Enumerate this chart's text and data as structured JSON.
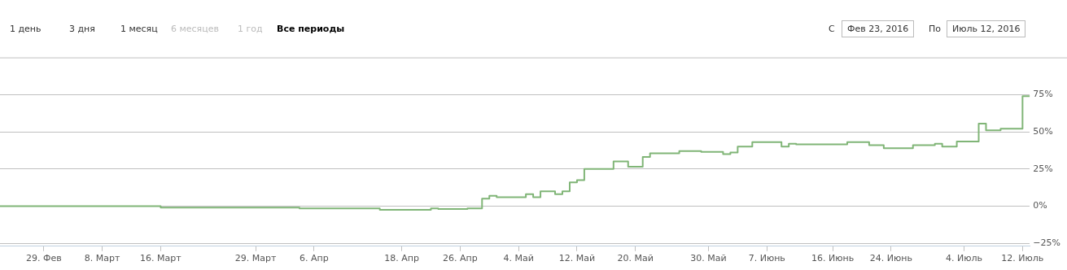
{
  "chart_data": {
    "type": "step",
    "color": "#80b577",
    "grid": "y",
    "line_style": "solid",
    "marker": "none",
    "annotations": [
      "1 день",
      "3 дня",
      "1 месяц",
      "6 месяцев",
      "1 год",
      "Все периоды",
      "С",
      "Фев 23, 2016",
      "По",
      "Июль 12, 2016"
    ],
    "xlim": [
      "2016-02-23",
      "2016-07-13"
    ],
    "xticks": [
      {
        "value": "2016-02-29",
        "label": "29. Фев"
      },
      {
        "value": "2016-03-08",
        "label": "8. Март"
      },
      {
        "value": "2016-03-16",
        "label": "16. Март"
      },
      {
        "value": "2016-03-29",
        "label": "29. Март"
      },
      {
        "value": "2016-04-06",
        "label": "6. Апр"
      },
      {
        "value": "2016-04-18",
        "label": "18. Апр"
      },
      {
        "value": "2016-04-26",
        "label": "26. Апр"
      },
      {
        "value": "2016-05-04",
        "label": "4. Май"
      },
      {
        "value": "2016-05-12",
        "label": "12. Май"
      },
      {
        "value": "2016-05-20",
        "label": "20. Май"
      },
      {
        "value": "2016-05-30",
        "label": "30. Май"
      },
      {
        "value": "2016-06-07",
        "label": "7. Июнь"
      },
      {
        "value": "2016-06-16",
        "label": "16. Июнь"
      },
      {
        "value": "2016-06-24",
        "label": "24. Июнь"
      },
      {
        "value": "2016-07-04",
        "label": "4. Июль"
      },
      {
        "value": "2016-07-12",
        "label": "12. Июль"
      }
    ],
    "ylim": [
      -27,
      100
    ],
    "yticks": [
      {
        "value": -25,
        "label": "−25%"
      },
      {
        "value": 0,
        "label": "0%"
      },
      {
        "value": 25,
        "label": "25%"
      },
      {
        "value": 50,
        "label": "50%"
      },
      {
        "value": 75,
        "label": "75%"
      }
    ],
    "x": [
      "2016-02-23",
      "2016-03-16",
      "2016-04-04",
      "2016-04-15",
      "2016-04-22",
      "2016-04-23",
      "2016-04-27",
      "2016-04-29",
      "2016-04-30",
      "2016-05-01",
      "2016-05-05",
      "2016-05-06",
      "2016-05-07",
      "2016-05-09",
      "2016-05-10",
      "2016-05-11",
      "2016-05-12",
      "2016-05-13",
      "2016-05-17",
      "2016-05-19",
      "2016-05-21",
      "2016-05-22",
      "2016-05-26",
      "2016-05-29",
      "2016-06-01",
      "2016-06-02",
      "2016-06-03",
      "2016-06-05",
      "2016-06-09",
      "2016-06-10",
      "2016-06-11",
      "2016-06-18",
      "2016-06-21",
      "2016-06-23",
      "2016-06-27",
      "2016-06-30",
      "2016-07-01",
      "2016-07-03",
      "2016-07-06",
      "2016-07-07",
      "2016-07-09",
      "2016-07-12",
      "2016-07-13"
    ],
    "values": [
      0,
      -1,
      -1.5,
      -2.5,
      -1.5,
      -2,
      -1.5,
      5,
      7,
      6,
      8,
      6,
      10,
      8,
      10,
      16,
      17.5,
      25,
      30,
      26.5,
      33,
      35.5,
      37,
      36.5,
      35,
      36,
      40,
      43,
      40,
      42,
      41.5,
      43,
      41,
      39,
      41,
      42,
      40,
      43.5,
      55.5,
      51,
      52,
      74,
      74
    ]
  }
}
